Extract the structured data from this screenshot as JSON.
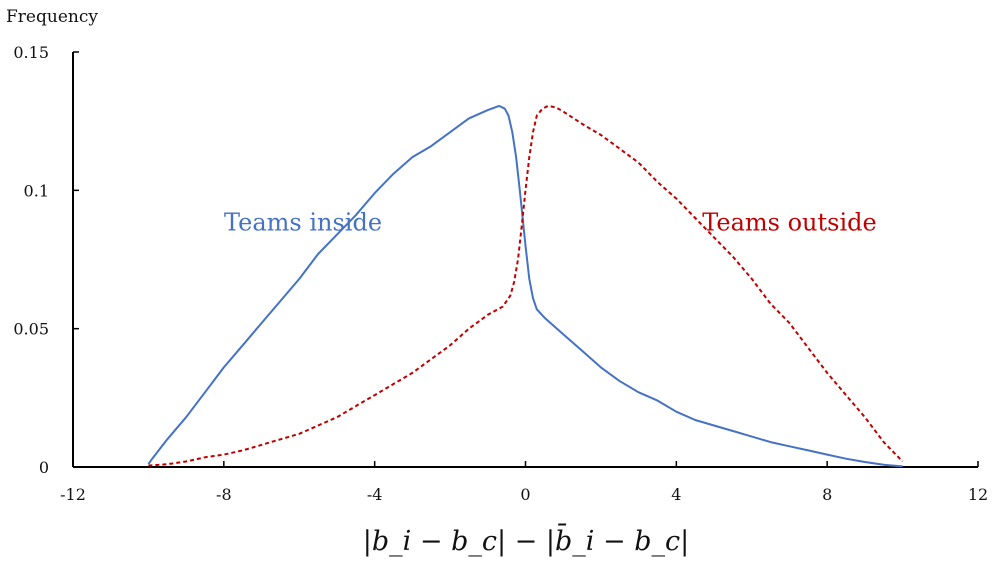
{
  "chart_data": {
    "type": "line",
    "title": "",
    "ylabel": "Frequency",
    "xlabel": "|b_i − b_c| − |b̄_i − b_c|",
    "xlim": [
      -12,
      12
    ],
    "ylim": [
      0,
      0.15
    ],
    "x_ticks": [
      -12,
      -8,
      -4,
      0,
      4,
      8,
      12
    ],
    "x_tick_labels": [
      "-12",
      "-8",
      "-4",
      "0",
      "4",
      "8",
      "12"
    ],
    "y_ticks": [
      0,
      0.05,
      0.1,
      0.15
    ],
    "y_tick_labels": [
      "0",
      "0.05",
      "0.1",
      "0.15"
    ],
    "grid": false,
    "legend": "inline labels",
    "series": [
      {
        "name": "Teams inside",
        "color": "#4472c4",
        "style": "solid",
        "label_x": -5.9,
        "label_y": 0.093,
        "x": [
          -10,
          -9.9,
          -9.5,
          -9,
          -8.5,
          -8,
          -7.5,
          -7,
          -6.5,
          -6,
          -5.5,
          -5,
          -4.5,
          -4,
          -3.5,
          -3,
          -2.5,
          -2,
          -1.5,
          -1,
          -0.7,
          -0.55,
          -0.45,
          -0.35,
          -0.25,
          -0.15,
          0,
          0.1,
          0.2,
          0.3,
          0.5,
          1,
          1.5,
          2,
          2.5,
          3,
          3.5,
          4,
          4.5,
          5,
          5.5,
          6,
          6.5,
          7,
          7.5,
          8,
          8.5,
          9,
          9.5,
          10
        ],
        "y": [
          0.001,
          0.003,
          0.01,
          0.018,
          0.027,
          0.036,
          0.044,
          0.052,
          0.06,
          0.068,
          0.077,
          0.084,
          0.091,
          0.099,
          0.106,
          0.112,
          0.116,
          0.121,
          0.126,
          0.129,
          0.1305,
          0.1295,
          0.127,
          0.121,
          0.112,
          0.1,
          0.08,
          0.068,
          0.061,
          0.057,
          0.054,
          0.048,
          0.042,
          0.036,
          0.031,
          0.027,
          0.024,
          0.02,
          0.017,
          0.015,
          0.013,
          0.011,
          0.009,
          0.0075,
          0.006,
          0.0045,
          0.003,
          0.0018,
          0.0008,
          0.0002
        ]
      },
      {
        "name": "Teams outside",
        "color": "#c00000",
        "style": "dashed",
        "label_x": 7.0,
        "label_y": 0.093,
        "x": [
          -10,
          -9.5,
          -9,
          -8.5,
          -8,
          -7.5,
          -7,
          -6.5,
          -6,
          -5.5,
          -5,
          -4.5,
          -4,
          -3.5,
          -3,
          -2.5,
          -2,
          -1.5,
          -1,
          -0.6,
          -0.4,
          -0.3,
          -0.2,
          -0.1,
          0,
          0.1,
          0.2,
          0.3,
          0.45,
          0.6,
          0.8,
          1,
          1.5,
          2,
          2.5,
          3,
          3.5,
          4,
          4.5,
          5,
          5.5,
          6,
          6.5,
          7,
          7.5,
          8,
          8.5,
          9,
          9.5,
          10
        ],
        "y": [
          0.0005,
          0.001,
          0.002,
          0.0035,
          0.0045,
          0.006,
          0.008,
          0.01,
          0.012,
          0.015,
          0.018,
          0.022,
          0.026,
          0.03,
          0.034,
          0.039,
          0.044,
          0.05,
          0.055,
          0.058,
          0.062,
          0.067,
          0.075,
          0.087,
          0.1,
          0.112,
          0.121,
          0.127,
          0.1295,
          0.1305,
          0.13,
          0.1285,
          0.124,
          0.12,
          0.115,
          0.11,
          0.103,
          0.097,
          0.09,
          0.083,
          0.076,
          0.068,
          0.059,
          0.052,
          0.043,
          0.034,
          0.026,
          0.018,
          0.009,
          0.002
        ]
      }
    ]
  }
}
